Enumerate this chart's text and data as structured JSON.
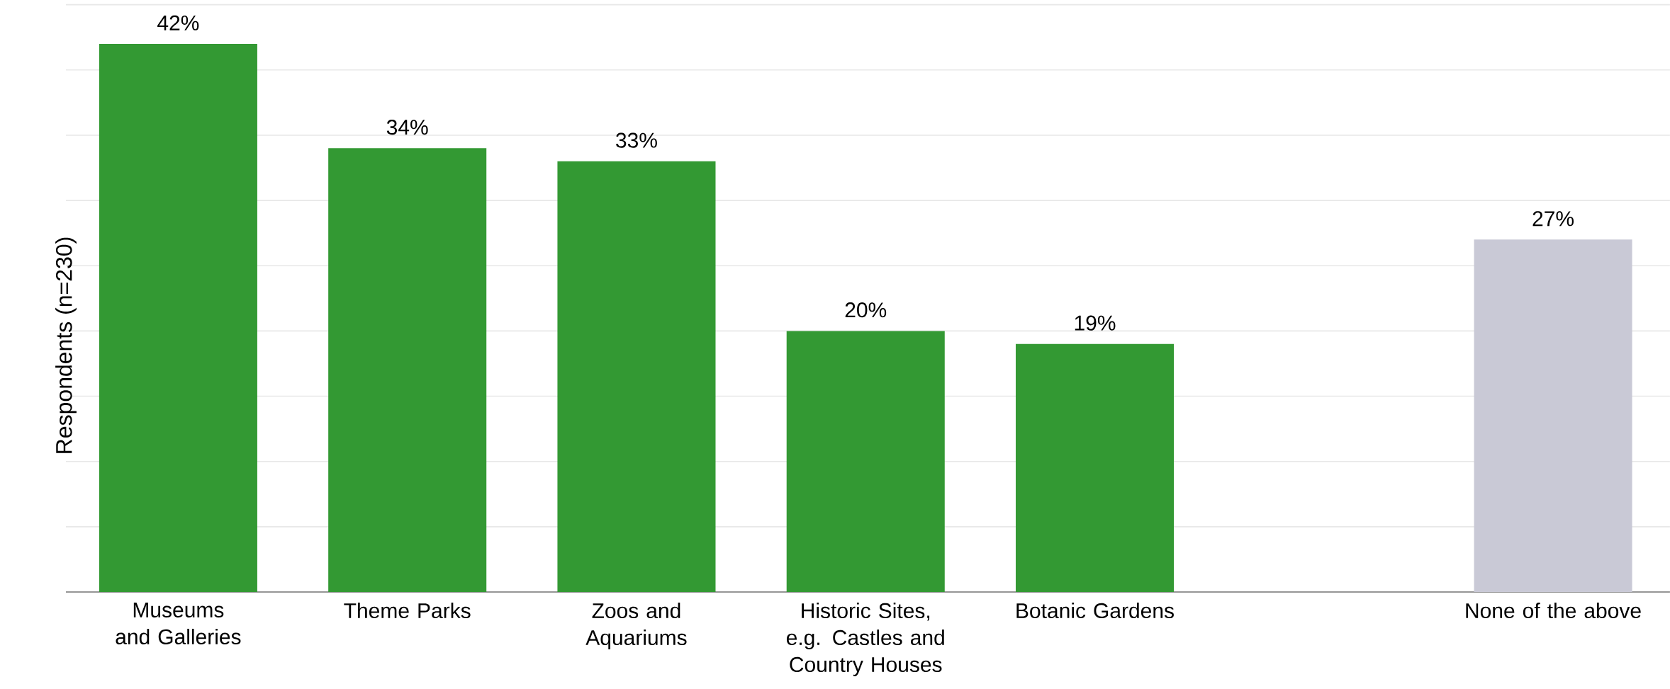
{
  "chart_data": {
    "type": "bar",
    "ylabel": "Respondents (n=230)",
    "categories": [
      "Museums and Galleries",
      "Theme Parks",
      "Zoos and Aquariums",
      "Historic Sites, e.g. Castles and Country Houses",
      "Botanic Gardens",
      null,
      "None of the above"
    ],
    "values": [
      42,
      34,
      33,
      20,
      19,
      null,
      27
    ],
    "value_labels": [
      "42%",
      "34%",
      "33%",
      "20%",
      "19%",
      null,
      "27%"
    ],
    "colors": [
      "#339933",
      "#339933",
      "#339933",
      "#339933",
      "#339933",
      null,
      "#c9c9d6"
    ],
    "grid": "y",
    "tick_labels": "x"
  }
}
